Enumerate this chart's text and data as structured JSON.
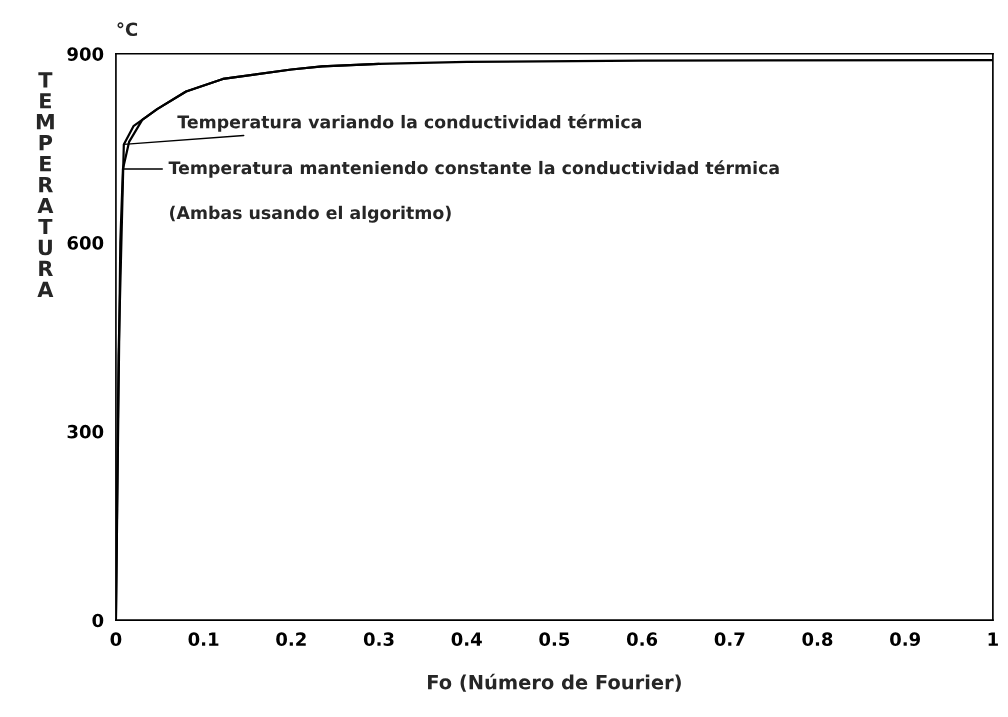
{
  "chart_data": {
    "type": "line",
    "xlabel": "Fo (Número de Fourier)",
    "ylabel": "TEMPERATURA",
    "xlim": [
      0,
      1
    ],
    "ylim": [
      0,
      900
    ],
    "xticks": [
      0,
      0.1,
      0.2,
      0.3,
      0.4,
      0.5,
      0.6,
      0.7,
      0.8,
      0.9,
      1
    ],
    "yticks": [
      0,
      300,
      600,
      900
    ],
    "grid": false,
    "legend": false,
    "marker": "none",
    "line_style": "solid",
    "series": [
      {
        "color": "#000000",
        "x": [
          0,
          0.003,
          0.009,
          0.02,
          0.047,
          0.08,
          0.122,
          0.2,
          0.235,
          0.3,
          0.4,
          0.6,
          1
        ],
        "values": [
          0,
          420,
          756,
          785,
          812,
          840,
          860,
          875,
          880,
          884,
          887,
          889,
          890
        ]
      },
      {
        "color": "#000000",
        "x": [
          0,
          0.005,
          0.008,
          0.015,
          0.03,
          0.047,
          0.08,
          0.122,
          0.2,
          0.235,
          0.3
        ],
        "values": [
          0,
          600,
          717,
          760,
          795,
          812,
          840,
          860,
          875,
          880,
          884
        ]
      }
    ],
    "annotations": [
      {
        "text": "Temperatura variando la conductividad térmica",
        "x": 0.009,
        "y": 756
      },
      {
        "text": "Temperatura manteniendo constante la conductividad térmica",
        "x": 0.008,
        "y": 717
      },
      "(Ambas usando el algoritmo)",
      "°C"
    ]
  }
}
